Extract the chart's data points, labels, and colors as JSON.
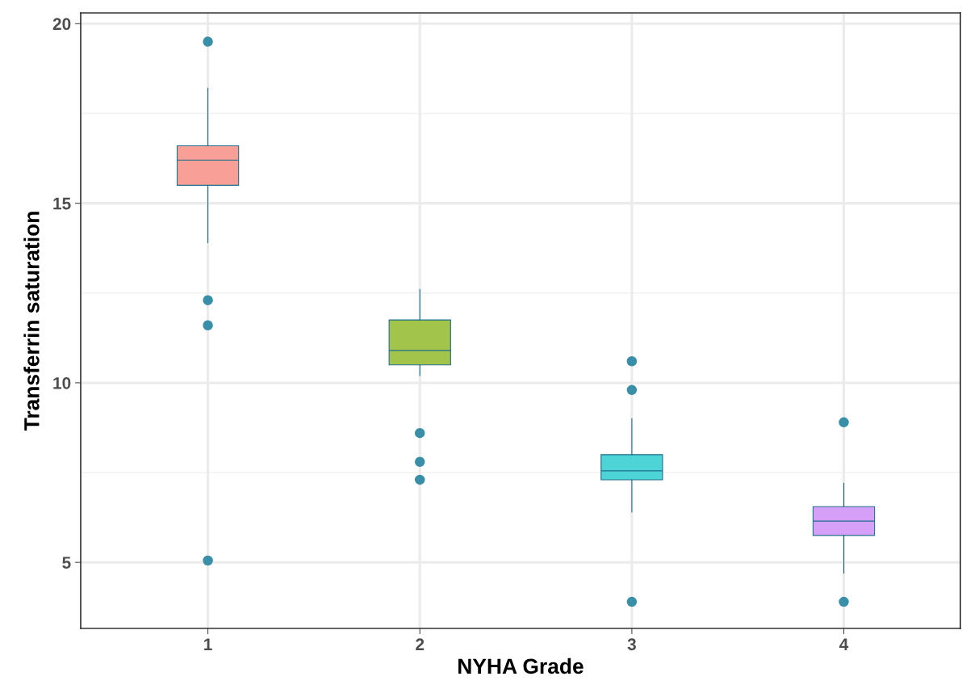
{
  "chart_data": {
    "type": "box",
    "xlabel": "NYHA Grade",
    "ylabel": "Transferrin saturation",
    "categories": [
      "1",
      "2",
      "3",
      "4"
    ],
    "colors": [
      "#f8a097",
      "#a3c44b",
      "#4dd4d6",
      "#d6a0f8"
    ],
    "boxes": [
      {
        "low": 13.9,
        "q1": 15.5,
        "median": 16.2,
        "q3": 16.6,
        "high": 18.2,
        "outliers": [
          19.5,
          12.3,
          11.6,
          5.05
        ]
      },
      {
        "low": 10.2,
        "q1": 10.5,
        "median": 10.9,
        "q3": 11.75,
        "high": 12.6,
        "outliers": [
          8.6,
          7.8,
          7.3
        ]
      },
      {
        "low": 6.4,
        "q1": 7.3,
        "median": 7.55,
        "q3": 8.0,
        "high": 9.0,
        "outliers": [
          10.6,
          9.8,
          3.9
        ]
      },
      {
        "low": 4.7,
        "q1": 5.75,
        "median": 6.15,
        "q3": 6.55,
        "high": 7.2,
        "outliers": [
          8.9,
          3.9
        ]
      }
    ],
    "ylim": [
      3.16,
      20.3
    ],
    "yticks": [
      5,
      10,
      15,
      20
    ],
    "grid": true
  }
}
